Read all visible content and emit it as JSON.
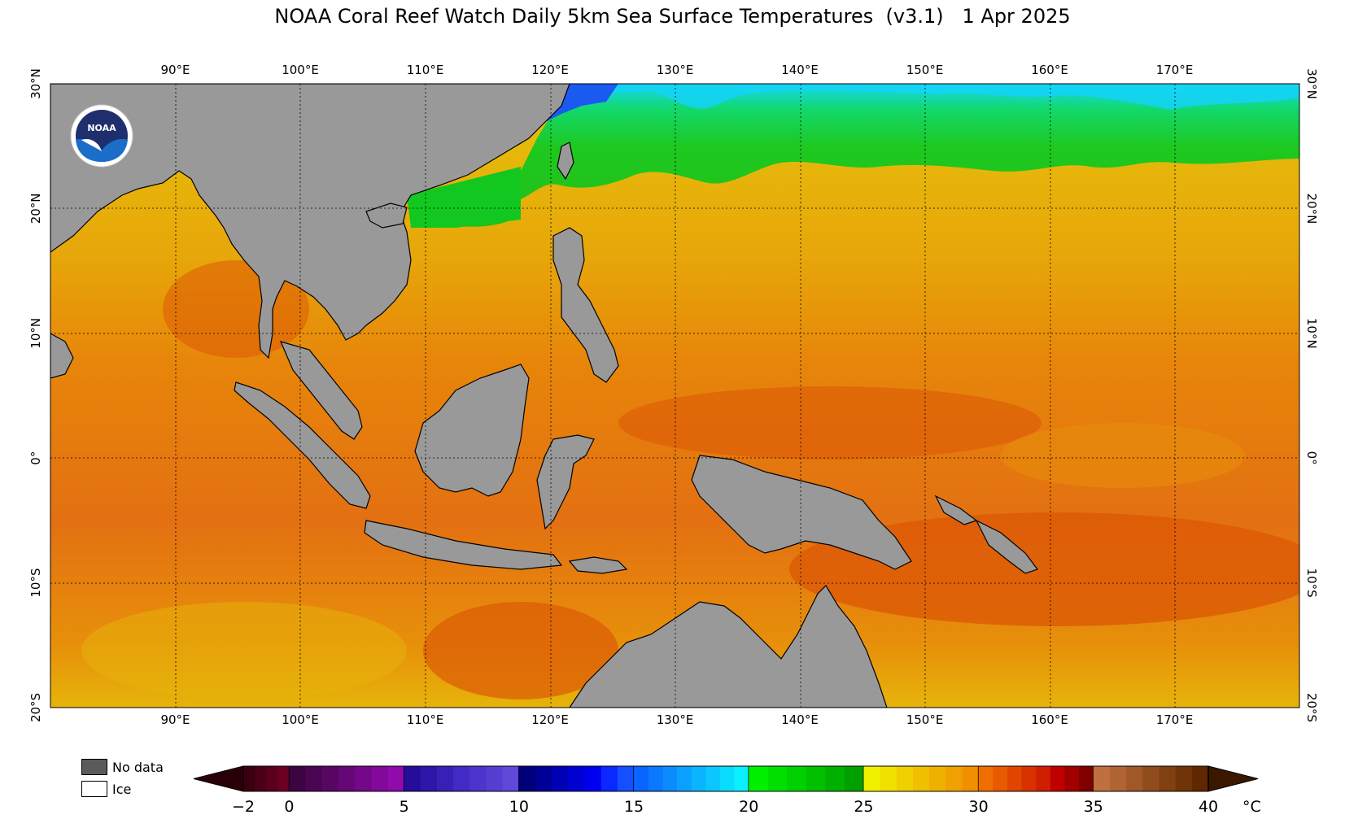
{
  "title": "NOAA Coral Reef Watch Daily 5km Sea Surface Temperatures  (v3.1)   1 Apr 2025",
  "map": {
    "lon_labels": [
      "90°E",
      "100°E",
      "110°E",
      "120°E",
      "130°E",
      "140°E",
      "150°E",
      "160°E",
      "170°E"
    ],
    "lat_labels": [
      "30°N",
      "20°N",
      "10°N",
      "0°",
      "10°S",
      "20°S"
    ],
    "colors": {
      "land": "#999999",
      "ocean_warm": "#e7850a",
      "ocean_hot": "#dc5a06",
      "ocean_yellow": "#e6c20a",
      "ocean_green": "#1ec81e",
      "ocean_cyan": "#14dcf5"
    }
  },
  "logo": {
    "text": "NOAA"
  },
  "legend": {
    "no_data": {
      "label": "No data",
      "color": "#5a5a5a"
    },
    "ice": {
      "label": "Ice",
      "color": "#ffffff"
    }
  },
  "colorbar": {
    "unit": "°C",
    "tick_labels": [
      "−2",
      "0",
      "5",
      "10",
      "15",
      "20",
      "25",
      "30",
      "35",
      "40"
    ],
    "bands": [
      {
        "from": -2,
        "to": 0,
        "colors": [
          "#3a0010",
          "#4a0016",
          "#5a001c",
          "#6a0022"
        ]
      },
      {
        "from": 0,
        "to": 5,
        "colors": [
          "#3c0440",
          "#4a0552",
          "#580664",
          "#660776",
          "#740888",
          "#82099a",
          "#900aac"
        ]
      },
      {
        "from": 5,
        "to": 10,
        "colors": [
          "#260c9a",
          "#2e16a8",
          "#3820b6",
          "#422ac4",
          "#4c34cc",
          "#563ed2",
          "#6048d8"
        ]
      },
      {
        "from": 10,
        "to": 15,
        "colors": [
          "#00007a",
          "#000096",
          "#0000b4",
          "#0000d2",
          "#0000f0",
          "#0a28ff",
          "#1450ff"
        ]
      },
      {
        "from": 15,
        "to": 20,
        "colors": [
          "#0a64ff",
          "#0a78ff",
          "#0a8cff",
          "#0aa0ff",
          "#0ab4ff",
          "#0ac8ff",
          "#0adcff",
          "#0af0ff"
        ]
      },
      {
        "from": 20,
        "to": 25,
        "colors": [
          "#00f000",
          "#00e000",
          "#00d000",
          "#00c000",
          "#00b000",
          "#00a000"
        ]
      },
      {
        "from": 25,
        "to": 30,
        "colors": [
          "#f0f000",
          "#f0e000",
          "#f0d000",
          "#f0c000",
          "#f0b000",
          "#f0a000",
          "#f09000"
        ]
      },
      {
        "from": 30,
        "to": 35,
        "colors": [
          "#f06e00",
          "#e85a00",
          "#e04600",
          "#d83200",
          "#d01e00",
          "#c00000",
          "#a00000",
          "#800000"
        ]
      },
      {
        "from": 35,
        "to": 40,
        "colors": [
          "#c07040",
          "#b06434",
          "#a05828",
          "#904c1c",
          "#804010",
          "#703408",
          "#602800"
        ]
      }
    ],
    "end_colors": {
      "low": "#2a0008",
      "high": "#3a1800"
    }
  }
}
